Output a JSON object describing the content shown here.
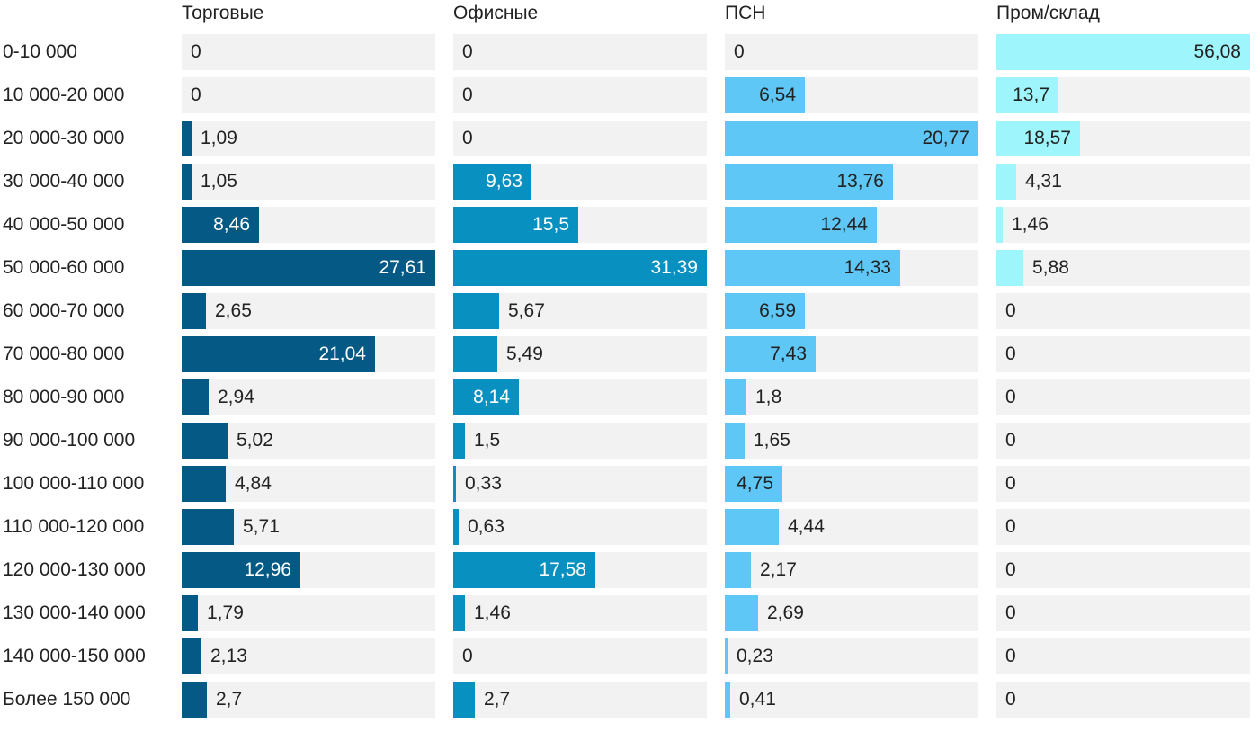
{
  "chart_data": {
    "type": "bar",
    "orientation": "horizontal",
    "layout": "small-multiples",
    "categories": [
      "0-10 000",
      "10 000-20 000",
      "20 000-30 000",
      "30 000-40 000",
      "40 000-50 000",
      "50 000-60 000",
      "60 000-70 000",
      "70 000-80 000",
      "80 000-90 000",
      "90 000-100 000",
      "100 000-110 000",
      "110 000-120 000",
      "120 000-130 000",
      "130 000-140 000",
      "140 000-150 000",
      "Более 150 000"
    ],
    "series": [
      {
        "name": "Торговые",
        "color": "#045a84",
        "values": [
          0,
          0,
          1.09,
          1.05,
          8.46,
          27.61,
          2.65,
          21.04,
          2.94,
          5.02,
          4.84,
          5.71,
          12.96,
          1.79,
          2.13,
          2.7
        ],
        "labels": [
          "0",
          "0",
          "1,09",
          "1,05",
          "8,46",
          "27,61",
          "2,65",
          "21,04",
          "2,94",
          "5,02",
          "4,84",
          "5,71",
          "12,96",
          "1,79",
          "2,13",
          "2,7"
        ],
        "max": 27.61
      },
      {
        "name": "Офисные",
        "color": "#0890c0",
        "values": [
          0,
          0,
          0,
          9.63,
          15.5,
          31.39,
          5.67,
          5.49,
          8.14,
          1.5,
          0.33,
          0.63,
          17.58,
          1.46,
          0,
          2.7
        ],
        "labels": [
          "0",
          "0",
          "0",
          "9,63",
          "15,5",
          "31,39",
          "5,67",
          "5,49",
          "8,14",
          "1,5",
          "0,33",
          "0,63",
          "17,58",
          "1,46",
          "0",
          "2,7"
        ],
        "max": 31.39
      },
      {
        "name": "ПСН",
        "color": "#5ec7f6",
        "values": [
          0,
          6.54,
          20.77,
          13.76,
          12.44,
          14.33,
          6.59,
          7.43,
          1.8,
          1.65,
          4.75,
          4.44,
          2.17,
          2.69,
          0.23,
          0.41
        ],
        "labels": [
          "0",
          "6,54",
          "20,77",
          "13,76",
          "12,44",
          "14,33",
          "6,59",
          "7,43",
          "1,8",
          "1,65",
          "4,75",
          "4,44",
          "2,17",
          "2,69",
          "0,23",
          "0,41"
        ],
        "max": 20.77
      },
      {
        "name": "Пром/склад",
        "color": "#9ef5fb",
        "values": [
          56.08,
          13.7,
          18.57,
          4.31,
          1.46,
          5.88,
          0,
          0,
          0,
          0,
          0,
          0,
          0,
          0,
          0,
          0
        ],
        "labels": [
          "56,08",
          "13,7",
          "18,57",
          "4,31",
          "1,46",
          "5,88",
          "0",
          "0",
          "0",
          "0",
          "0",
          "0",
          "0",
          "0",
          "0",
          "0"
        ],
        "max": 56.08
      }
    ],
    "title": "",
    "xlabel": "",
    "ylabel": "",
    "grid": false,
    "legend": "none"
  }
}
